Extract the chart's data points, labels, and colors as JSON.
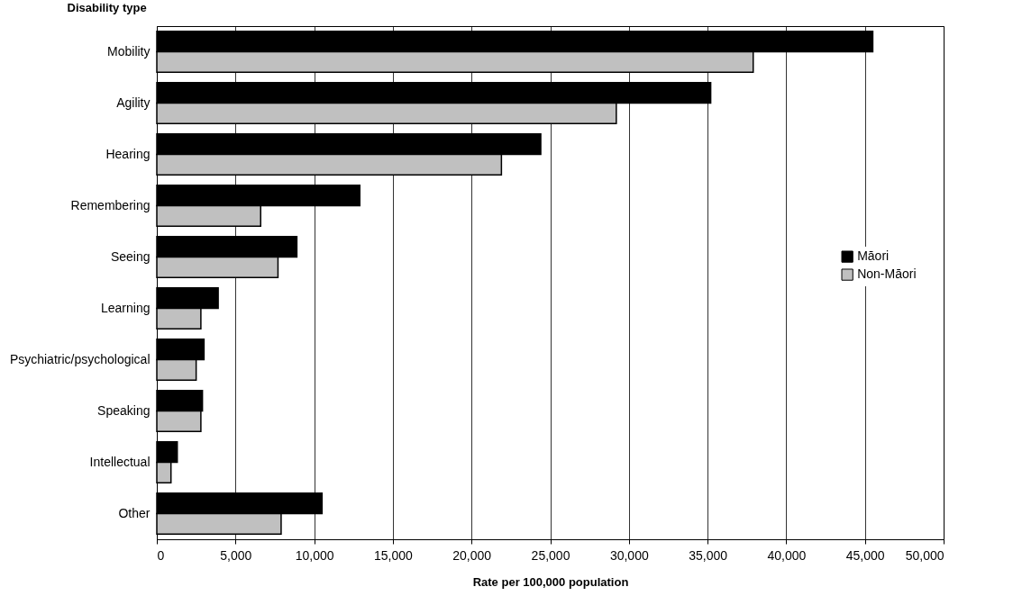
{
  "chart_data": {
    "type": "bar",
    "orientation": "horizontal",
    "ylabel": "Disability type",
    "xlabel": "Rate per 100,000 population",
    "categories": [
      "Mobility",
      "Agility",
      "Hearing",
      "Remembering",
      "Seeing",
      "Learning",
      "Psychiatric/psychological",
      "Speaking",
      "Intellectual",
      "Other"
    ],
    "series": [
      {
        "name": "Māori",
        "color": "#000000",
        "values": [
          45500,
          35200,
          24400,
          12900,
          8900,
          3900,
          3000,
          2900,
          1300,
          10500
        ]
      },
      {
        "name": "Non-Māori",
        "color": "#c0c0c0",
        "values": [
          37900,
          29200,
          21900,
          6600,
          7700,
          2800,
          2500,
          2800,
          900,
          7900
        ]
      }
    ],
    "xlim": [
      0,
      50000
    ],
    "xticks": [
      0,
      {
        "value": 5000,
        "label": "5,000"
      },
      {
        "value": 10000,
        "label": "10,000"
      },
      {
        "value": 15000,
        "label": "15,000"
      },
      {
        "value": 20000,
        "label": "20,000"
      },
      {
        "value": 25000,
        "label": "25,000"
      },
      {
        "value": 30000,
        "label": "30,000"
      },
      {
        "value": 35000,
        "label": "35,000"
      },
      {
        "value": 40000,
        "label": "40,000"
      },
      {
        "value": 45000,
        "label": "45,000"
      },
      {
        "value": 50000,
        "label": "50,000"
      }
    ],
    "grid": "x",
    "legend": "right"
  }
}
